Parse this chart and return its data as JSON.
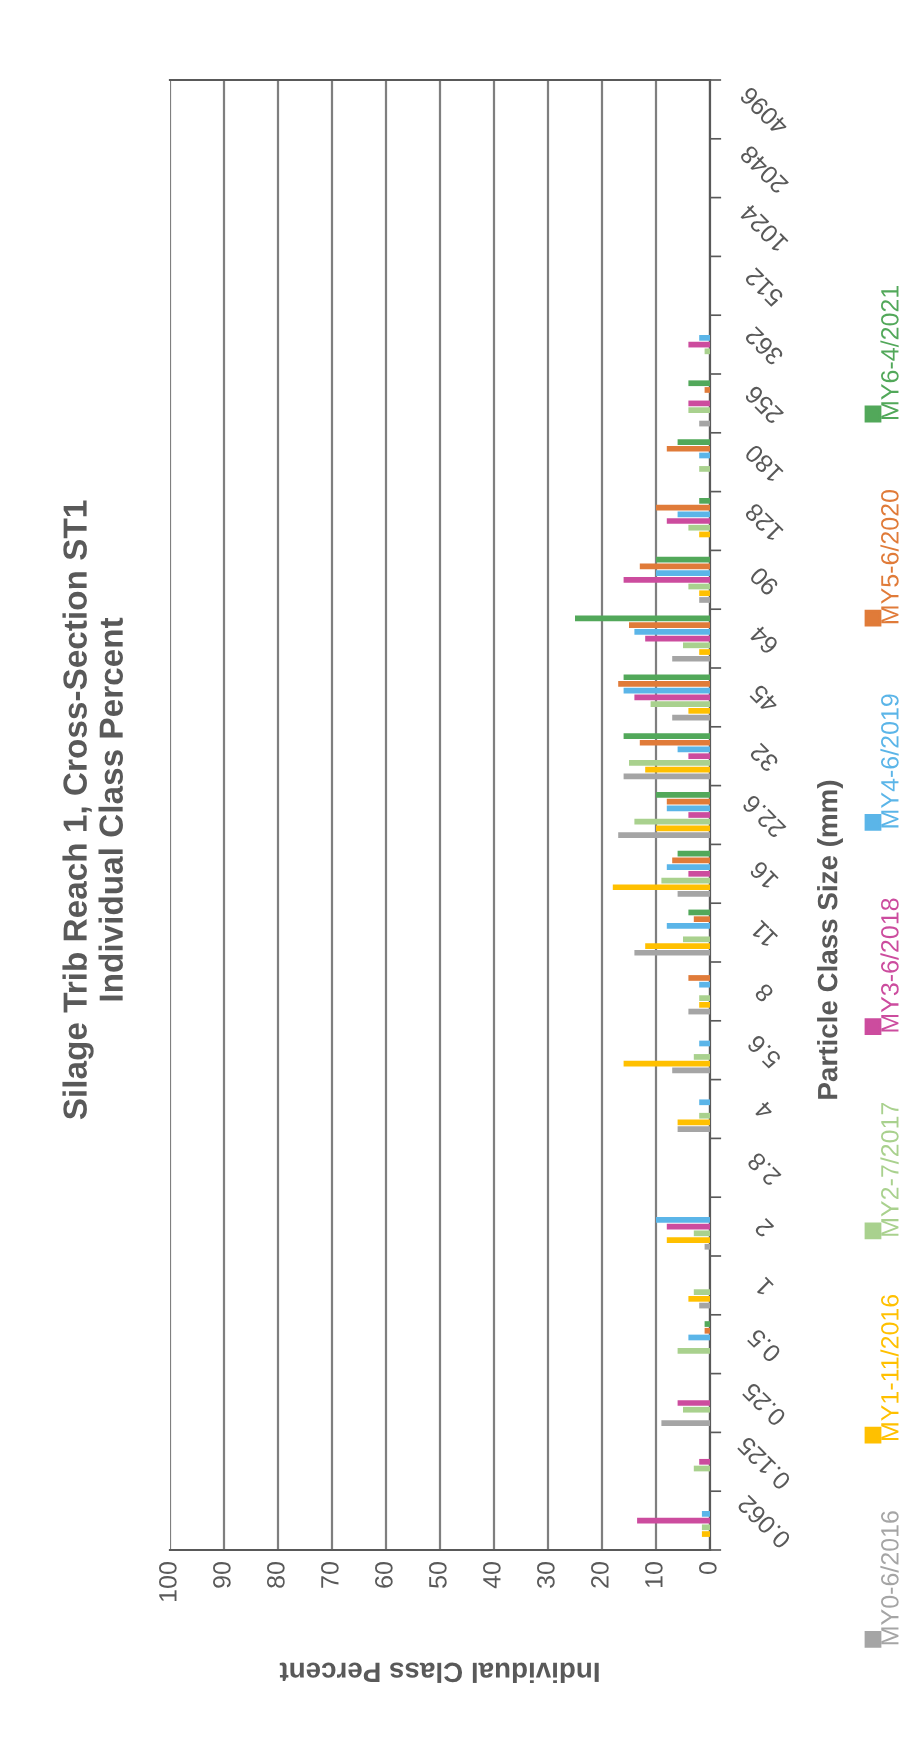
{
  "chart_data": {
    "type": "bar",
    "orientation": "horizontal",
    "title": "Silage Trib Reach 1, Cross-Section ST1\nIndividual Class Percent",
    "xlabel": "Individual Class Percent",
    "ylabel": "Particle Class Size (mm)",
    "categories": [
      "4096",
      "2048",
      "1024",
      "512",
      "362",
      "256",
      "180",
      "128",
      "90",
      "64",
      "45",
      "32",
      "22.6",
      "16",
      "11",
      "8",
      "5.6",
      "4",
      "2.8",
      "2",
      "1",
      "0.5",
      "0.25",
      "0.125",
      "0.062"
    ],
    "xlim": [
      100,
      0
    ],
    "xticks": [
      100,
      90,
      80,
      70,
      60,
      50,
      40,
      30,
      20,
      10,
      0
    ],
    "grid": "x",
    "legend": "right",
    "series": [
      {
        "name": "MY0-6/2016",
        "color": "#a5a5a5",
        "values": [
          0,
          0,
          0,
          0,
          0,
          2,
          0,
          0,
          2,
          7,
          7,
          16,
          17,
          6,
          14,
          4,
          7,
          6,
          0,
          1,
          2,
          0,
          9,
          0,
          0
        ]
      },
      {
        "name": "MY1-11/2016",
        "color": "#ffc000",
        "values": [
          0,
          0,
          0,
          0,
          0,
          0,
          0,
          2,
          2,
          2,
          4,
          12,
          10,
          18,
          12,
          2,
          16,
          6,
          0,
          8,
          4,
          0,
          0,
          0,
          1.5
        ]
      },
      {
        "name": "MY2-7/2017",
        "color": "#a9d18e",
        "values": [
          0,
          0,
          0,
          0,
          1,
          4,
          2,
          4,
          4,
          5,
          11,
          15,
          14,
          9,
          5,
          2,
          3,
          2,
          0,
          3,
          3,
          6,
          5,
          3,
          1.5
        ]
      },
      {
        "name": "MY3-6/2018",
        "color": "#cc4c9e",
        "values": [
          0,
          0,
          0,
          0,
          4,
          4,
          0,
          8,
          16,
          12,
          14,
          4,
          4,
          4,
          0,
          0,
          0,
          0,
          0,
          8,
          0,
          0,
          6,
          2,
          13.5
        ]
      },
      {
        "name": "MY4-6/2019",
        "color": "#5bb5e8",
        "values": [
          0,
          0,
          0,
          0,
          2,
          0,
          2,
          6,
          10,
          14,
          16,
          6,
          8,
          8,
          8,
          2,
          2,
          2,
          0,
          10,
          0,
          4,
          0,
          0,
          1.5
        ]
      },
      {
        "name": "MY5-6/2020",
        "color": "#e07b39",
        "values": [
          0,
          0,
          0,
          0,
          0,
          1,
          8,
          10,
          13,
          15,
          17,
          13,
          8,
          7,
          3,
          4,
          0,
          0,
          0,
          0,
          0,
          1,
          0,
          0,
          0
        ]
      },
      {
        "name": "MY6-4/2021",
        "color": "#52a85a",
        "values": [
          0,
          0,
          0,
          0,
          0,
          4,
          6,
          2,
          10,
          25,
          16,
          16,
          10,
          6,
          4,
          0,
          0,
          0,
          0,
          0,
          0,
          1,
          0,
          0,
          0
        ]
      }
    ]
  }
}
